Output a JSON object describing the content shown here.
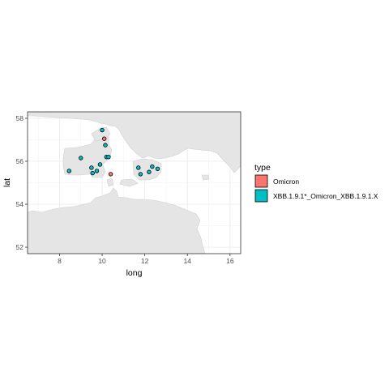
{
  "chart_data": {
    "type": "scatter",
    "xlabel": "long",
    "ylabel": "lat",
    "xlim": [
      6.5,
      16.5
    ],
    "ylim": [
      51.7,
      58.3
    ],
    "x_ticks": [
      "8",
      "10",
      "12",
      "14",
      "16"
    ],
    "y_ticks": [
      "52",
      "54",
      "56",
      "58"
    ],
    "grid": true,
    "legend": {
      "title": "type",
      "position": "right",
      "entries": [
        {
          "label": "Omicron",
          "color": "#F8766D"
        },
        {
          "label": "XBB.1.9.1*_Omicron_XBB.1.9.1.X",
          "color": "#00BFC4"
        }
      ]
    },
    "series": [
      {
        "name": "Omicron",
        "color": "#F8766D",
        "points": [
          {
            "long": 10.1,
            "lat": 57.05
          },
          {
            "long": 10.4,
            "lat": 55.4
          }
        ]
      },
      {
        "name": "XBB.1.9.1*_Omicron_XBB.1.9.1.X",
        "color": "#00BFC4",
        "points": [
          {
            "long": 10.0,
            "lat": 57.45
          },
          {
            "long": 10.15,
            "lat": 56.75
          },
          {
            "long": 9.0,
            "lat": 56.15
          },
          {
            "long": 10.2,
            "lat": 56.2
          },
          {
            "long": 10.3,
            "lat": 56.2
          },
          {
            "long": 9.9,
            "lat": 55.85
          },
          {
            "long": 9.5,
            "lat": 55.7
          },
          {
            "long": 9.75,
            "lat": 55.55
          },
          {
            "long": 9.55,
            "lat": 55.45
          },
          {
            "long": 8.45,
            "lat": 55.55
          },
          {
            "long": 11.7,
            "lat": 55.7
          },
          {
            "long": 12.35,
            "lat": 55.75
          },
          {
            "long": 12.6,
            "lat": 55.65
          },
          {
            "long": 11.8,
            "lat": 55.4
          },
          {
            "long": 12.2,
            "lat": 55.5
          }
        ]
      }
    ]
  }
}
